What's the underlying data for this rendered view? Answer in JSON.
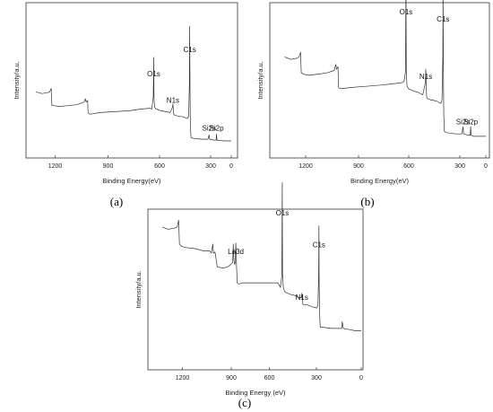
{
  "chart_data": [
    {
      "type": "line",
      "panel_label": "(a)",
      "xlabel": "Binding Energy(eV)",
      "ylabel": "Intensity/a.u.",
      "xlim": [
        1380,
        0
      ],
      "x_ticks": [
        "1200",
        "900",
        "600",
        "300",
        "0"
      ],
      "y_ticks": false,
      "peaks": [
        {
          "label": "C1s",
          "x": 285,
          "y": 1.0
        },
        {
          "label": "O1s",
          "x": 532,
          "y": 0.72
        },
        {
          "label": "N1s",
          "x": 400,
          "y": 0.41
        },
        {
          "label": "Si2s",
          "x": 152,
          "y": 0.09
        },
        {
          "label": "Si2p",
          "x": 101,
          "y": 0.09
        }
      ],
      "series": [
        {
          "x": [
            1340,
            1300,
            1260,
            1245,
            1235,
            1230,
            1215,
            1180,
            1120,
            1060,
            1010,
            1000,
            995,
            985,
            982,
            970,
            900,
            800,
            700,
            620,
            560,
            545,
            535,
            532,
            530,
            525,
            515,
            480,
            450,
            420,
            403,
            400,
            395,
            390,
            370,
            330,
            300,
            292,
            287,
            285,
            283,
            280,
            276,
            260,
            200,
            160,
            152,
            148,
            120,
            104,
            101,
            98,
            80,
            40,
            0
          ],
          "y": [
            0.58,
            0.56,
            0.57,
            0.58,
            0.62,
            0.42,
            0.42,
            0.41,
            0.42,
            0.43,
            0.46,
            0.5,
            0.46,
            0.48,
            0.34,
            0.32,
            0.34,
            0.35,
            0.36,
            0.38,
            0.39,
            0.38,
            0.52,
            0.98,
            0.5,
            0.4,
            0.38,
            0.36,
            0.35,
            0.34,
            0.4,
            0.44,
            0.33,
            0.31,
            0.3,
            0.29,
            0.27,
            0.3,
            0.68,
            1.34,
            0.6,
            0.18,
            0.05,
            0.04,
            0.03,
            0.03,
            0.08,
            0.03,
            0.02,
            0.02,
            0.09,
            0.02,
            0.015,
            0.01,
            0.01
          ]
        }
      ]
    },
    {
      "type": "line",
      "panel_label": "(b)",
      "xlabel": "Binding Energy(eV)",
      "ylabel": "Intensity/a.u.",
      "xlim": [
        1380,
        0
      ],
      "x_ticks": [
        "1200",
        "900",
        "600",
        "300",
        "0"
      ],
      "y_ticks": false,
      "peaks": [
        {
          "label": "O1s",
          "x": 532,
          "y": 1.0
        },
        {
          "label": "C1s",
          "x": 285,
          "y": 0.94
        },
        {
          "label": "N1s",
          "x": 400,
          "y": 0.47
        },
        {
          "label": "Si2s",
          "x": 152,
          "y": 0.1
        },
        {
          "label": "Si2p",
          "x": 101,
          "y": 0.1
        }
      ],
      "series": [
        {
          "x": [
            1340,
            1300,
            1260,
            1245,
            1235,
            1230,
            1215,
            1180,
            1120,
            1060,
            1010,
            1000,
            995,
            985,
            982,
            970,
            900,
            800,
            700,
            620,
            560,
            545,
            535,
            532,
            530,
            525,
            515,
            480,
            450,
            420,
            403,
            400,
            395,
            390,
            370,
            330,
            300,
            292,
            287,
            285,
            283,
            280,
            276,
            260,
            200,
            160,
            152,
            148,
            120,
            104,
            101,
            98,
            80,
            40,
            0
          ],
          "y": [
            0.68,
            0.66,
            0.67,
            0.68,
            0.72,
            0.55,
            0.54,
            0.53,
            0.54,
            0.55,
            0.57,
            0.62,
            0.58,
            0.6,
            0.43,
            0.42,
            0.43,
            0.44,
            0.45,
            0.46,
            0.47,
            0.48,
            0.56,
            1.36,
            0.55,
            0.44,
            0.42,
            0.4,
            0.39,
            0.37,
            0.47,
            0.58,
            0.36,
            0.34,
            0.33,
            0.32,
            0.3,
            0.33,
            0.68,
            1.3,
            0.6,
            0.2,
            0.07,
            0.06,
            0.05,
            0.05,
            0.11,
            0.05,
            0.04,
            0.04,
            0.11,
            0.04,
            0.03,
            0.03,
            0.03
          ]
        }
      ]
    },
    {
      "type": "line",
      "panel_label": "(c)",
      "xlabel": "Binding Energy (eV)",
      "ylabel": "Intensity/a.u.",
      "xlim": [
        1380,
        0
      ],
      "x_ticks": [
        "1200",
        "900",
        "600",
        "300",
        "0"
      ],
      "y_ticks": false,
      "peaks": [
        {
          "label": "O1s",
          "x": 532,
          "y": 1.0
        },
        {
          "label": "La3d",
          "x": 845,
          "y": 0.66
        },
        {
          "label": "C1s",
          "x": 285,
          "y": 0.72
        },
        {
          "label": "N1s",
          "x": 400,
          "y": 0.26
        }
      ],
      "series": [
        {
          "x": [
            1340,
            1300,
            1260,
            1240,
            1230,
            1225,
            1210,
            1180,
            1120,
            1060,
            1020,
            1010,
            1005,
            1000,
            995,
            985,
            970,
            930,
            900,
            880,
            866,
            862,
            858,
            852,
            849,
            845,
            840,
            835,
            825,
            800,
            700,
            620,
            560,
            545,
            535,
            532,
            530,
            525,
            515,
            480,
            450,
            420,
            403,
            400,
            395,
            390,
            370,
            330,
            300,
            292,
            287,
            285,
            283,
            280,
            276,
            260,
            200,
            160,
            140,
            131,
            128,
            120,
            80,
            40,
            0
          ],
          "y": [
            0.93,
            0.91,
            0.92,
            0.93,
            0.99,
            0.78,
            0.76,
            0.75,
            0.74,
            0.72,
            0.72,
            0.7,
            0.74,
            0.78,
            0.7,
            0.71,
            0.58,
            0.57,
            0.58,
            0.6,
            0.62,
            0.78,
            0.64,
            0.6,
            0.62,
            0.79,
            0.58,
            0.44,
            0.43,
            0.44,
            0.44,
            0.44,
            0.44,
            0.4,
            0.5,
            1.32,
            0.52,
            0.4,
            0.36,
            0.34,
            0.33,
            0.31,
            0.31,
            0.35,
            0.26,
            0.25,
            0.25,
            0.23,
            0.22,
            0.24,
            0.5,
            0.94,
            0.4,
            0.16,
            0.05,
            0.05,
            0.04,
            0.04,
            0.04,
            0.04,
            0.1,
            0.04,
            0.03,
            0.02,
            0.02
          ]
        }
      ]
    }
  ]
}
